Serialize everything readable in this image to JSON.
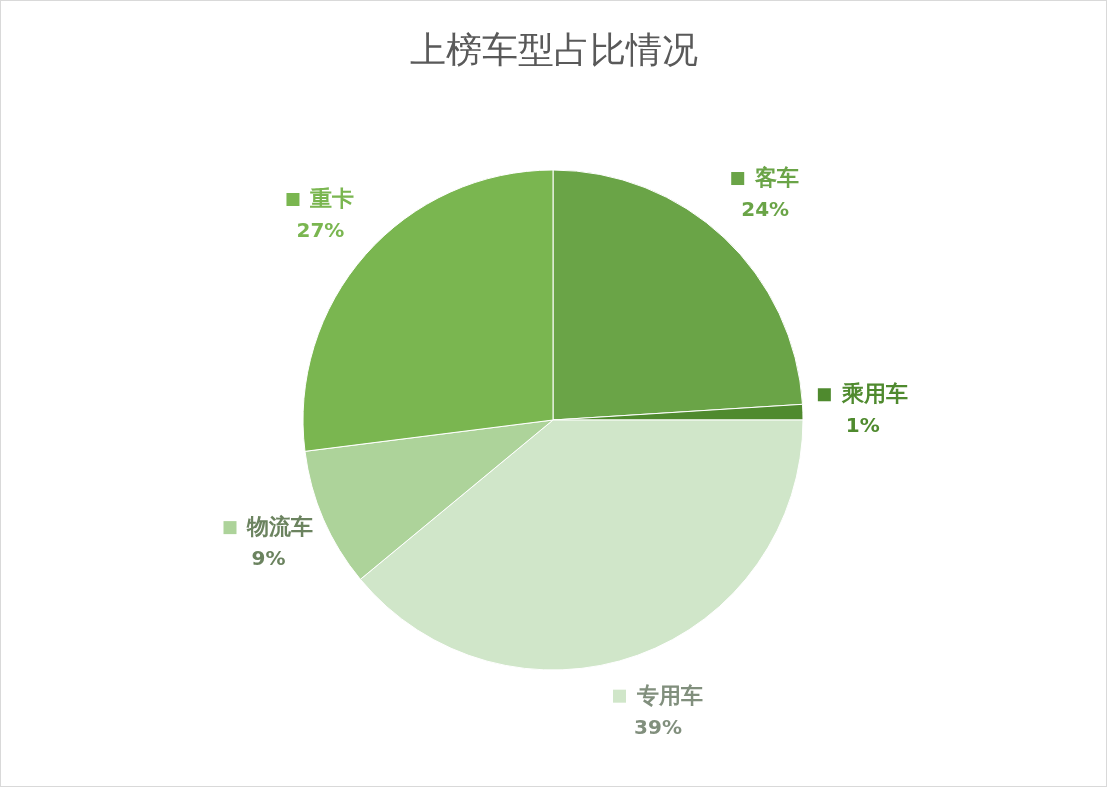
{
  "chart_data": {
    "type": "pie",
    "title": "上榜车型占比情况",
    "categories": [
      "客车",
      "乘用车",
      "专用车",
      "物流车",
      "重卡"
    ],
    "values": [
      24,
      1,
      39,
      9,
      27
    ],
    "colors": [
      "#6aa447",
      "#4f8a2e",
      "#d0e6c9",
      "#add39a",
      "#7ab650"
    ],
    "value_labels": [
      "24%",
      "1%",
      "39%",
      "9%",
      "27%"
    ],
    "legend": "right"
  }
}
